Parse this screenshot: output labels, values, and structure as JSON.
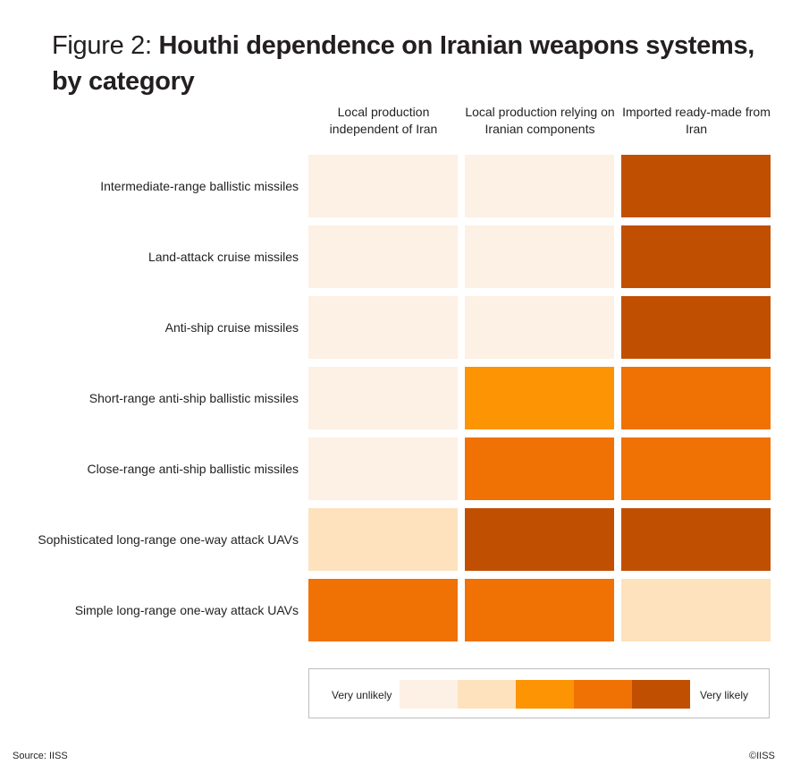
{
  "title": {
    "prefix": "Figure 2: ",
    "main": "Houthi dependence on Iranian weapons systems, by category"
  },
  "chart_data": {
    "type": "heatmap",
    "columns": [
      "Local production independent of Iran",
      "Local production relying on Iranian components",
      "Imported ready-made from Iran"
    ],
    "rows": [
      "Intermediate-range ballistic missiles",
      "Land-attack cruise missiles",
      "Anti-ship cruise missiles",
      "Short-range anti-ship ballistic missiles",
      "Close-range anti-ship ballistic missiles",
      "Sophisticated long-range one-way attack UAVs",
      "Simple long-range one-way attack UAVs"
    ],
    "values": [
      [
        1,
        1,
        5
      ],
      [
        1,
        1,
        5
      ],
      [
        1,
        1,
        5
      ],
      [
        1,
        3,
        4
      ],
      [
        1,
        4,
        4
      ],
      [
        2,
        5,
        5
      ],
      [
        4,
        4,
        2
      ]
    ],
    "scale": {
      "min_label": "Very unlikely",
      "max_label": "Very likely",
      "levels": [
        1,
        2,
        3,
        4,
        5
      ],
      "colors": [
        "#fdf0e4",
        "#fde2bd",
        "#fc9403",
        "#f07104",
        "#c14f02"
      ]
    }
  },
  "footer": {
    "source": "Source: IISS",
    "copyright": "©IISS"
  }
}
